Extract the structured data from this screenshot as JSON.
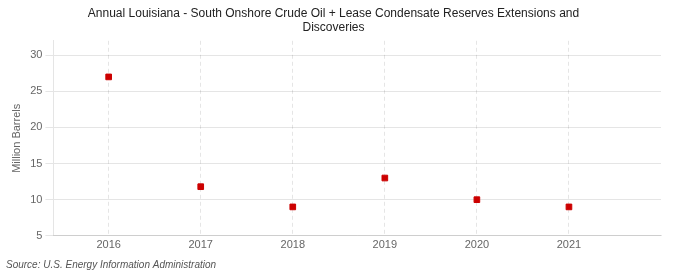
{
  "chart_data": {
    "type": "scatter",
    "title": "Annual Louisiana - South Onshore Crude Oil + Lease Condensate Reserves Extensions and\nDiscoveries",
    "ylabel": "Million Barrels",
    "source": "Source: U.S. Energy Information Administration",
    "x": [
      2016,
      2017,
      2018,
      2019,
      2020,
      2021
    ],
    "values": [
      27.0,
      11.8,
      9.0,
      13.0,
      10.0,
      9.0
    ],
    "xlim": [
      2015.4,
      2022.0
    ],
    "xticks": [
      2016,
      2017,
      2018,
      2019,
      2020,
      2021
    ],
    "ylim": [
      5,
      32
    ],
    "yticks": [
      5,
      10,
      15,
      20,
      25,
      30
    ],
    "grid": true,
    "color": "#CC0000",
    "marker": "square"
  }
}
